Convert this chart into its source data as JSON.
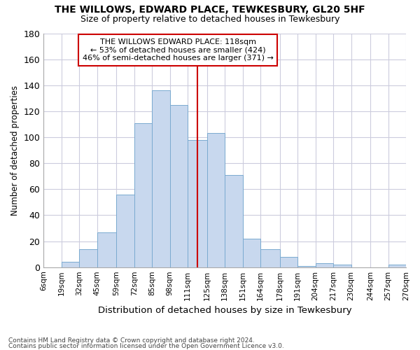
{
  "title1": "THE WILLOWS, EDWARD PLACE, TEWKESBURY, GL20 5HF",
  "title2": "Size of property relative to detached houses in Tewkesbury",
  "xlabel": "Distribution of detached houses by size in Tewkesbury",
  "ylabel": "Number of detached properties",
  "footnote1": "Contains HM Land Registry data © Crown copyright and database right 2024.",
  "footnote2": "Contains public sector information licensed under the Open Government Licence v3.0.",
  "annotation_line1": "THE WILLOWS EDWARD PLACE: 118sqm",
  "annotation_line2": "← 53% of detached houses are smaller (424)",
  "annotation_line3": "46% of semi-detached houses are larger (371) →",
  "property_sqm": 118,
  "bin_edges": [
    6,
    19,
    32,
    45,
    59,
    72,
    85,
    98,
    111,
    125,
    138,
    151,
    164,
    178,
    191,
    204,
    217,
    230,
    244,
    257,
    270
  ],
  "bar_values": [
    0,
    4,
    14,
    27,
    56,
    111,
    136,
    125,
    98,
    103,
    71,
    22,
    14,
    8,
    1,
    3,
    2,
    0,
    0,
    2
  ],
  "bar_color": "#c8d8ee",
  "bar_edge_color": "#7aaad0",
  "vline_color": "#cc0000",
  "grid_color": "#ccccdd",
  "background_color": "#ffffff",
  "annotation_box_color": "#ffffff",
  "annotation_box_edge": "#cc0000",
  "ylim": [
    0,
    180
  ],
  "yticks": [
    0,
    20,
    40,
    60,
    80,
    100,
    120,
    140,
    160,
    180
  ]
}
